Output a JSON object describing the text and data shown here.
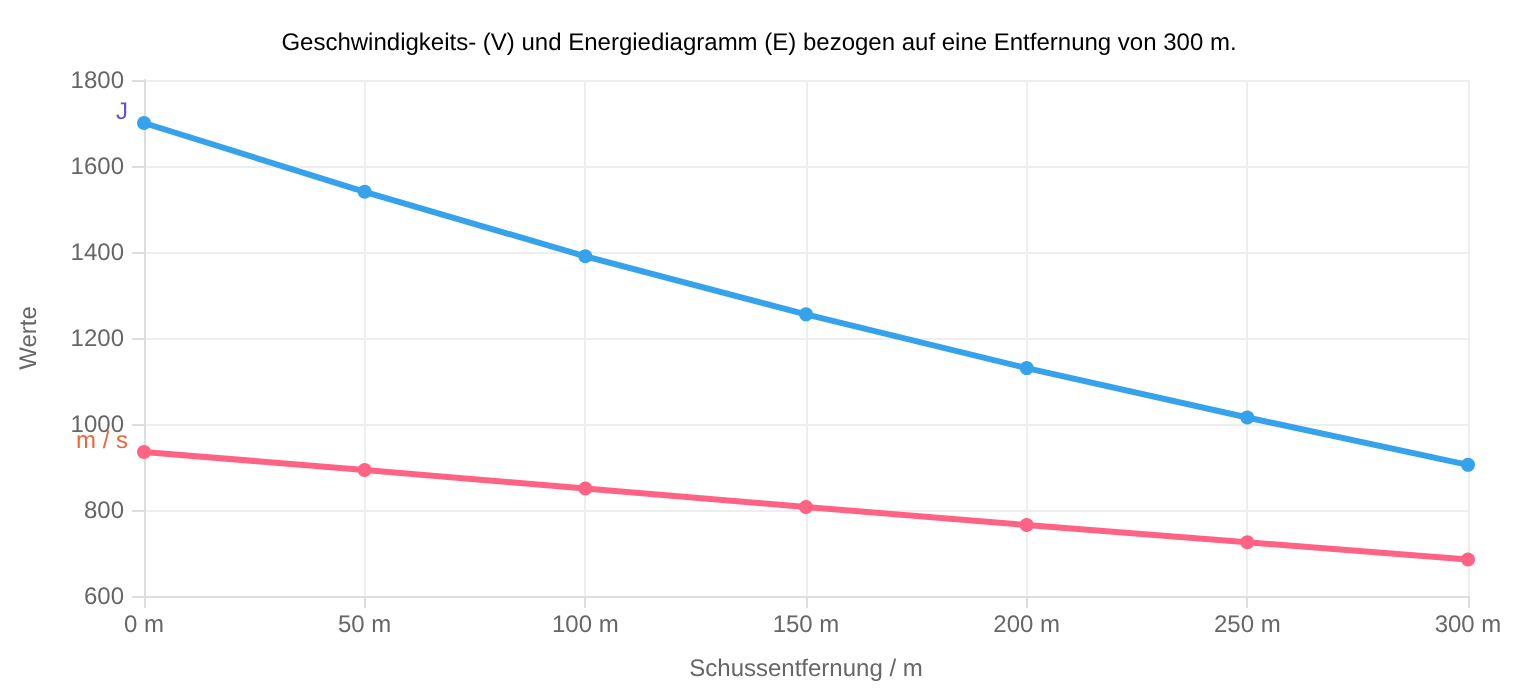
{
  "chart_data": {
    "type": "line",
    "title": "Geschwindigkeits- (V) und Energiediagramm (E) bezogen auf eine Entfernung von 300 m.",
    "xlabel": "Schussentfernung / m",
    "ylabel": "Werte",
    "x": [
      0,
      50,
      100,
      150,
      200,
      250,
      300
    ],
    "series": [
      {
        "color": "#36a2eb",
        "values": [
          1700,
          1540,
          1390,
          1255,
          1130,
          1015,
          905
        ]
      },
      {
        "color": "#ff6384",
        "values": [
          935,
          893,
          850,
          807,
          765,
          725,
          685
        ]
      }
    ],
    "annotations": [
      {
        "text": "J",
        "x": 0,
        "y": 1700
      },
      {
        "text": "m / s",
        "x": 0,
        "y": 935
      }
    ],
    "xlim": [
      0,
      300
    ],
    "xticks": [
      {
        "value": 0,
        "label": "0 m"
      },
      {
        "value": 50,
        "label": "50 m"
      },
      {
        "value": 100,
        "label": "100 m"
      },
      {
        "value": 150,
        "label": "150 m"
      },
      {
        "value": 200,
        "label": "200 m"
      },
      {
        "value": 250,
        "label": "250 m"
      },
      {
        "value": 300,
        "label": "300 m"
      }
    ],
    "ylim": [
      600,
      1800
    ],
    "yticks": [
      600,
      800,
      1000,
      1200,
      1400,
      1600,
      1800
    ],
    "grid": true,
    "marker": "circle",
    "line_style": "solid"
  }
}
